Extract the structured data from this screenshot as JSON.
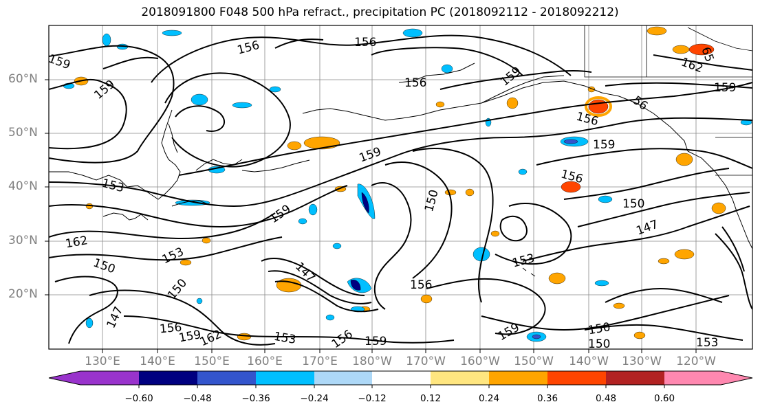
{
  "title": "2018091800 F048 500 hPa refract., precipitation PC (2018092112 - 2018092212)",
  "map": {
    "lat_labels": [
      "60°N",
      "50°N",
      "40°N",
      "30°N",
      "20°N"
    ],
    "lon_labels": [
      "130°E",
      "140°E",
      "150°E",
      "160°E",
      "170°E",
      "180°W",
      "170°W",
      "160°W",
      "150°W",
      "140°W",
      "130°W",
      "120°W"
    ],
    "contour_labels": [
      {
        "text": "159"
      },
      {
        "text": "159"
      },
      {
        "text": "156"
      },
      {
        "text": "156"
      },
      {
        "text": "159"
      },
      {
        "text": "162"
      },
      {
        "text": "159"
      },
      {
        "text": "156"
      },
      {
        "text": "159"
      },
      {
        "text": "159"
      },
      {
        "text": "156"
      },
      {
        "text": "153"
      },
      {
        "text": "159"
      },
      {
        "text": "150"
      },
      {
        "text": "150"
      },
      {
        "text": "147"
      },
      {
        "text": "162"
      },
      {
        "text": "153"
      },
      {
        "text": "150"
      },
      {
        "text": "153"
      },
      {
        "text": "147"
      },
      {
        "text": "156"
      },
      {
        "text": "150"
      },
      {
        "text": "147"
      },
      {
        "text": "156"
      },
      {
        "text": "159"
      },
      {
        "text": "162"
      },
      {
        "text": "153"
      },
      {
        "text": "156"
      },
      {
        "text": "159"
      },
      {
        "text": "150"
      },
      {
        "text": "150"
      },
      {
        "text": "153"
      },
      {
        "text": "159"
      },
      {
        "text": "56"
      },
      {
        "text": "156"
      },
      {
        "text": "65"
      }
    ]
  },
  "colorbar": {
    "colors": [
      "#9933cc",
      "#000080",
      "#3355cc",
      "#00bfff",
      "#add8f7",
      "#ffffff",
      "#ffe680",
      "#ffa500",
      "#ff4500",
      "#b22222",
      "#ff88b0"
    ],
    "tick_labels": [
      "−0.60",
      "−0.48",
      "−0.36",
      "−0.24",
      "−0.12",
      "0.12",
      "0.24",
      "0.36",
      "0.48",
      "0.60"
    ]
  }
}
